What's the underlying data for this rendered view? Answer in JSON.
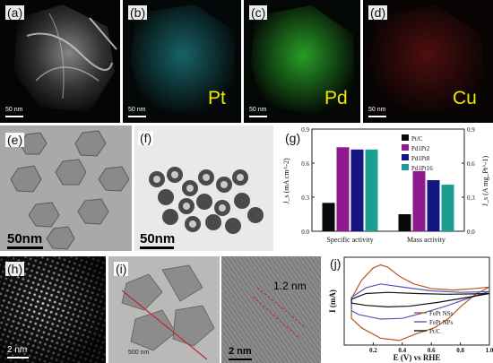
{
  "panels": {
    "a": {
      "label": "(a)",
      "scale": "50 nm"
    },
    "b": {
      "label": "(b)",
      "element": "Pt",
      "scale": "50 nm"
    },
    "c": {
      "label": "(c)",
      "element": "Pd",
      "scale": "50 nm"
    },
    "d": {
      "label": "(d)",
      "element": "Cu",
      "scale": "50 nm"
    },
    "e": {
      "label": "(e)",
      "scale": "50nm"
    },
    "f": {
      "label": "(f)",
      "scale": "50nm"
    },
    "g": {
      "label": "(g)"
    },
    "h": {
      "label": "(h)",
      "scale": "2 nm"
    },
    "i": {
      "label": "(i)",
      "scale": "500 nm",
      "annotation": "1.2 nm",
      "scale_right": "2 nm"
    },
    "j": {
      "label": "(j)"
    }
  },
  "chart_data": [
    {
      "type": "bar",
      "title": "",
      "categories": [
        "Specific activity",
        "Mass activity"
      ],
      "ylabel_left": "J_s (mA cm^-2)",
      "ylabel_right": "J_s (A mg_Pt^-1)",
      "ylim_left": [
        0,
        0.9
      ],
      "ylim_right": [
        0,
        0.9
      ],
      "yticks_left": [
        "0.0",
        "0.3",
        "0.6",
        "0.9"
      ],
      "yticks_right": [
        "0.0",
        "0.3",
        "0.6",
        "0.9"
      ],
      "legend_position": "top-right",
      "series": [
        {
          "name": "Pt/C",
          "color": "#0a0a0a",
          "values": [
            0.25,
            0.15
          ]
        },
        {
          "name": "Pd1Pt2",
          "color": "#8e1a8e",
          "values": [
            0.74,
            0.53
          ]
        },
        {
          "name": "Pd1Pt8",
          "color": "#141483",
          "values": [
            0.72,
            0.45
          ]
        },
        {
          "name": "Pd1Pt16",
          "color": "#1a9e92",
          "values": [
            0.72,
            0.41
          ]
        }
      ]
    },
    {
      "type": "line",
      "title": "",
      "xlabel": "E (V) vs RHE",
      "ylabel": "I (mA)",
      "xlim": [
        0.0,
        1.0
      ],
      "xticks": [
        "0.2",
        "0.4",
        "0.6",
        "0.8",
        "1.0"
      ],
      "legend_position": "bottom-center",
      "series": [
        {
          "name": "FePt NSs",
          "color": "#b5561f",
          "x": [
            0.05,
            0.12,
            0.2,
            0.25,
            0.3,
            0.38,
            0.48,
            0.6,
            0.75,
            0.9,
            1.0,
            0.9,
            0.8,
            0.72,
            0.62,
            0.5,
            0.38,
            0.25,
            0.12,
            0.05
          ],
          "y": [
            -0.08,
            0.4,
            0.72,
            0.8,
            0.74,
            0.5,
            0.3,
            0.18,
            0.14,
            0.18,
            0.22,
            0.02,
            -0.3,
            -0.6,
            -0.85,
            -1.0,
            -1.18,
            -1.12,
            -0.85,
            -0.6
          ]
        },
        {
          "name": "FePt NPs",
          "color": "#5555bb",
          "x": [
            0.05,
            0.15,
            0.25,
            0.4,
            0.6,
            0.8,
            1.0,
            0.85,
            0.7,
            0.55,
            0.4,
            0.25,
            0.1,
            0.05
          ],
          "y": [
            -0.05,
            0.2,
            0.3,
            0.22,
            0.12,
            0.08,
            0.1,
            -0.08,
            -0.28,
            -0.45,
            -0.6,
            -0.62,
            -0.5,
            -0.4
          ]
        },
        {
          "name": "Pt/C",
          "color": "#111111",
          "x": [
            0.05,
            0.15,
            0.3,
            0.5,
            0.7,
            0.9,
            1.0,
            0.85,
            0.65,
            0.45,
            0.3,
            0.15,
            0.05
          ],
          "y": [
            -0.1,
            0.05,
            0.08,
            0.05,
            0.03,
            0.04,
            0.05,
            -0.05,
            -0.18,
            -0.28,
            -0.3,
            -0.26,
            -0.2
          ]
        }
      ]
    }
  ]
}
